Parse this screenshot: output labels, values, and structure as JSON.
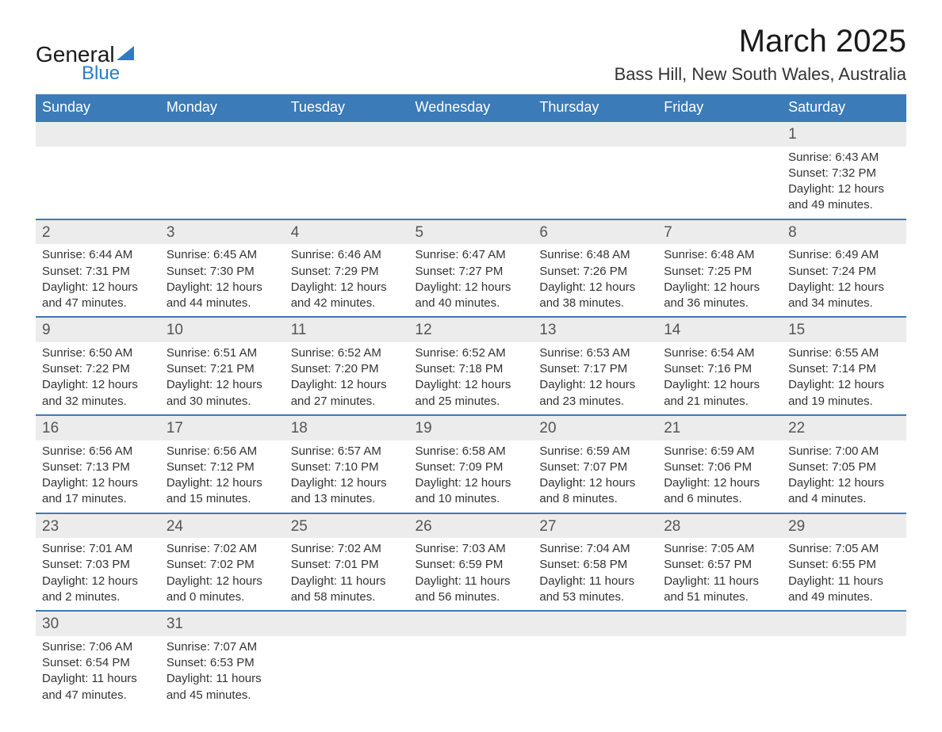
{
  "logo": {
    "general": "General",
    "blue": "Blue"
  },
  "title": "March 2025",
  "location": "Bass Hill, New South Wales, Australia",
  "colors": {
    "header_bg": "#3b7bb8",
    "header_text": "#ffffff",
    "daynum_bg": "#ececec",
    "row_border": "#3b7bb8",
    "logo_accent": "#2c7cc4",
    "text": "#333333"
  },
  "weekdays": [
    "Sunday",
    "Monday",
    "Tuesday",
    "Wednesday",
    "Thursday",
    "Friday",
    "Saturday"
  ],
  "labels": {
    "sunrise": "Sunrise:",
    "sunset": "Sunset:",
    "daylight": "Daylight:"
  },
  "weeks": [
    [
      null,
      null,
      null,
      null,
      null,
      null,
      {
        "n": "1",
        "sunrise": "6:43 AM",
        "sunset": "7:32 PM",
        "daylight": "12 hours and 49 minutes."
      }
    ],
    [
      {
        "n": "2",
        "sunrise": "6:44 AM",
        "sunset": "7:31 PM",
        "daylight": "12 hours and 47 minutes."
      },
      {
        "n": "3",
        "sunrise": "6:45 AM",
        "sunset": "7:30 PM",
        "daylight": "12 hours and 44 minutes."
      },
      {
        "n": "4",
        "sunrise": "6:46 AM",
        "sunset": "7:29 PM",
        "daylight": "12 hours and 42 minutes."
      },
      {
        "n": "5",
        "sunrise": "6:47 AM",
        "sunset": "7:27 PM",
        "daylight": "12 hours and 40 minutes."
      },
      {
        "n": "6",
        "sunrise": "6:48 AM",
        "sunset": "7:26 PM",
        "daylight": "12 hours and 38 minutes."
      },
      {
        "n": "7",
        "sunrise": "6:48 AM",
        "sunset": "7:25 PM",
        "daylight": "12 hours and 36 minutes."
      },
      {
        "n": "8",
        "sunrise": "6:49 AM",
        "sunset": "7:24 PM",
        "daylight": "12 hours and 34 minutes."
      }
    ],
    [
      {
        "n": "9",
        "sunrise": "6:50 AM",
        "sunset": "7:22 PM",
        "daylight": "12 hours and 32 minutes."
      },
      {
        "n": "10",
        "sunrise": "6:51 AM",
        "sunset": "7:21 PM",
        "daylight": "12 hours and 30 minutes."
      },
      {
        "n": "11",
        "sunrise": "6:52 AM",
        "sunset": "7:20 PM",
        "daylight": "12 hours and 27 minutes."
      },
      {
        "n": "12",
        "sunrise": "6:52 AM",
        "sunset": "7:18 PM",
        "daylight": "12 hours and 25 minutes."
      },
      {
        "n": "13",
        "sunrise": "6:53 AM",
        "sunset": "7:17 PM",
        "daylight": "12 hours and 23 minutes."
      },
      {
        "n": "14",
        "sunrise": "6:54 AM",
        "sunset": "7:16 PM",
        "daylight": "12 hours and 21 minutes."
      },
      {
        "n": "15",
        "sunrise": "6:55 AM",
        "sunset": "7:14 PM",
        "daylight": "12 hours and 19 minutes."
      }
    ],
    [
      {
        "n": "16",
        "sunrise": "6:56 AM",
        "sunset": "7:13 PM",
        "daylight": "12 hours and 17 minutes."
      },
      {
        "n": "17",
        "sunrise": "6:56 AM",
        "sunset": "7:12 PM",
        "daylight": "12 hours and 15 minutes."
      },
      {
        "n": "18",
        "sunrise": "6:57 AM",
        "sunset": "7:10 PM",
        "daylight": "12 hours and 13 minutes."
      },
      {
        "n": "19",
        "sunrise": "6:58 AM",
        "sunset": "7:09 PM",
        "daylight": "12 hours and 10 minutes."
      },
      {
        "n": "20",
        "sunrise": "6:59 AM",
        "sunset": "7:07 PM",
        "daylight": "12 hours and 8 minutes."
      },
      {
        "n": "21",
        "sunrise": "6:59 AM",
        "sunset": "7:06 PM",
        "daylight": "12 hours and 6 minutes."
      },
      {
        "n": "22",
        "sunrise": "7:00 AM",
        "sunset": "7:05 PM",
        "daylight": "12 hours and 4 minutes."
      }
    ],
    [
      {
        "n": "23",
        "sunrise": "7:01 AM",
        "sunset": "7:03 PM",
        "daylight": "12 hours and 2 minutes."
      },
      {
        "n": "24",
        "sunrise": "7:02 AM",
        "sunset": "7:02 PM",
        "daylight": "12 hours and 0 minutes."
      },
      {
        "n": "25",
        "sunrise": "7:02 AM",
        "sunset": "7:01 PM",
        "daylight": "11 hours and 58 minutes."
      },
      {
        "n": "26",
        "sunrise": "7:03 AM",
        "sunset": "6:59 PM",
        "daylight": "11 hours and 56 minutes."
      },
      {
        "n": "27",
        "sunrise": "7:04 AM",
        "sunset": "6:58 PM",
        "daylight": "11 hours and 53 minutes."
      },
      {
        "n": "28",
        "sunrise": "7:05 AM",
        "sunset": "6:57 PM",
        "daylight": "11 hours and 51 minutes."
      },
      {
        "n": "29",
        "sunrise": "7:05 AM",
        "sunset": "6:55 PM",
        "daylight": "11 hours and 49 minutes."
      }
    ],
    [
      {
        "n": "30",
        "sunrise": "7:06 AM",
        "sunset": "6:54 PM",
        "daylight": "11 hours and 47 minutes."
      },
      {
        "n": "31",
        "sunrise": "7:07 AM",
        "sunset": "6:53 PM",
        "daylight": "11 hours and 45 minutes."
      },
      null,
      null,
      null,
      null,
      null
    ]
  ]
}
